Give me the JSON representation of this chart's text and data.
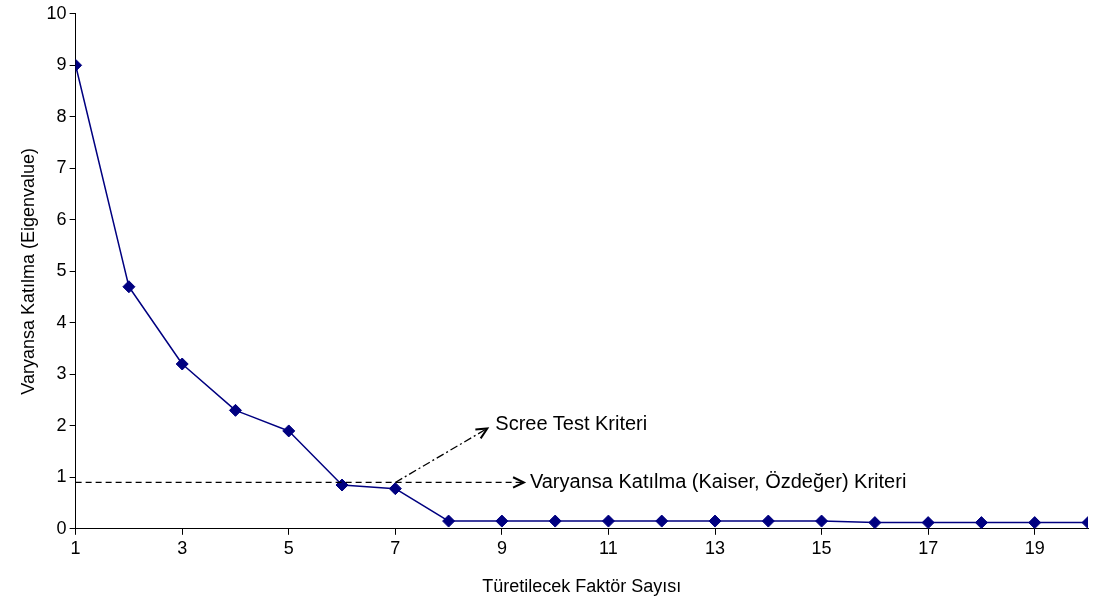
{
  "chart_data": {
    "type": "line",
    "xlabel": "Türetilecek Faktör Sayısı",
    "ylabel": "Varyansa Katılma (Eigenvalue)",
    "x": [
      1,
      2,
      3,
      4,
      5,
      6,
      7,
      8,
      9,
      10,
      11,
      12,
      13,
      14,
      15,
      16,
      17,
      18,
      19,
      20
    ],
    "series": [
      {
        "color": "#000080",
        "values": [
          9,
          4.7,
          3.2,
          2.3,
          1.9,
          0.85,
          0.78,
          0.15,
          0.15,
          0.15,
          0.15,
          0.15,
          0.15,
          0.15,
          0.15,
          0.12,
          0.12,
          0.12,
          0.12,
          0.12
        ]
      }
    ],
    "xlim": [
      1,
      20
    ],
    "xticks": [
      1,
      3,
      5,
      7,
      9,
      11,
      13,
      15,
      17,
      19
    ],
    "ylim": [
      0,
      10
    ],
    "yticks": [
      0,
      1,
      2,
      3,
      4,
      5,
      6,
      7,
      8,
      9,
      10
    ],
    "grid": false,
    "legend": false,
    "marker": "diamond",
    "line_style": "solid",
    "ref_lines": [
      {
        "axis": "y",
        "value": 0.9,
        "label": "Varyansa Katılma (Kaiser, Özdeğer) Kriteri",
        "line_style": "dashed",
        "color": "#000000"
      }
    ],
    "annotations": [
      {
        "text": "Scree Test Kriteri",
        "x": 7,
        "y": 0.9
      }
    ]
  }
}
